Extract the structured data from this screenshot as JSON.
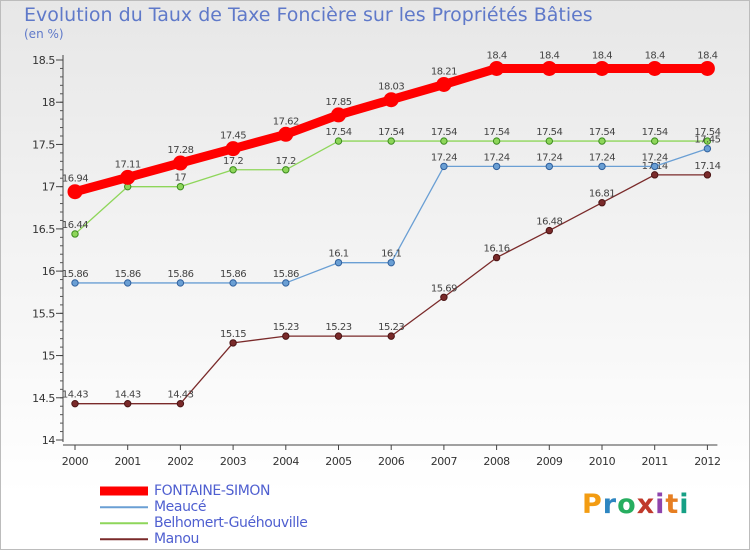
{
  "header": {
    "title": "Evolution du Taux de Taxe Foncière sur les Propriétés Bâties",
    "unit": "(en %)"
  },
  "logo": {
    "text": "Proxiti",
    "colors": [
      "#f39c12",
      "#2e86c1",
      "#27ae60",
      "#c0392b",
      "#8e44ad",
      "#e67e22",
      "#16a085"
    ]
  },
  "chart_data": {
    "type": "line",
    "title": "Evolution du Taux de Taxe Foncière sur les Propriétés Bâties",
    "ylabel": "(en %)",
    "xlabel": "",
    "x": [
      "2000",
      "2001",
      "2002",
      "2003",
      "2004",
      "2005",
      "2006",
      "2007",
      "2008",
      "2009",
      "2010",
      "2011",
      "2012"
    ],
    "ylim": [
      14,
      18.5
    ],
    "yticks": [
      "14",
      "14.5",
      "15",
      "15.5",
      "16",
      "16.5",
      "17",
      "17.5",
      "18",
      "18.5"
    ],
    "grid": false,
    "legend_position": "bottom-left",
    "series": [
      {
        "name": "FONTAINE-SIMON",
        "color": "#ff0000",
        "values": [
          16.94,
          17.11,
          17.28,
          17.45,
          17.62,
          17.85,
          18.03,
          18.21,
          18.4,
          18.4,
          18.4,
          18.4,
          18.4
        ],
        "labels": [
          "16.94",
          "17.11",
          "17.28",
          "17.45",
          "17.62",
          "17.85",
          "18.03",
          "18.21",
          "18.4",
          "18.4",
          "18.4",
          "18.4",
          "18.4"
        ]
      },
      {
        "name": "Meaucé",
        "color": "#6a9fd4",
        "values": [
          15.86,
          15.86,
          15.86,
          15.86,
          15.86,
          16.1,
          16.1,
          17.24,
          17.24,
          17.24,
          17.24,
          17.24,
          17.45
        ],
        "labels": [
          "15.86",
          "15.86",
          "15.86",
          "15.86",
          "15.86",
          "16.1",
          "16.1",
          "17.24",
          "17.24",
          "17.24",
          "17.24",
          "17.24",
          "17.45"
        ]
      },
      {
        "name": "Belhomert-Guéhouville",
        "color": "#8ed65a",
        "values": [
          16.44,
          17,
          17,
          17.2,
          17.2,
          17.54,
          17.54,
          17.54,
          17.54,
          17.54,
          17.54,
          17.54,
          17.54
        ],
        "labels": [
          "16.44",
          "17",
          "17",
          "17.2",
          "17.2",
          "17.54",
          "17.54",
          "17.54",
          "17.54",
          "17.54",
          "17.54",
          "17.54",
          "17.54"
        ]
      },
      {
        "name": "Manou",
        "color": "#7a2a2a",
        "values": [
          14.43,
          14.43,
          14.43,
          15.15,
          15.23,
          15.23,
          15.23,
          15.69,
          16.16,
          16.48,
          16.81,
          17.14,
          17.14
        ],
        "labels": [
          "14.43",
          "14.43",
          "14.43",
          "15.15",
          "15.23",
          "15.23",
          "15.23",
          "15.69",
          "16.16",
          "16.48",
          "16.81",
          "17.14",
          "17.14"
        ]
      }
    ]
  }
}
